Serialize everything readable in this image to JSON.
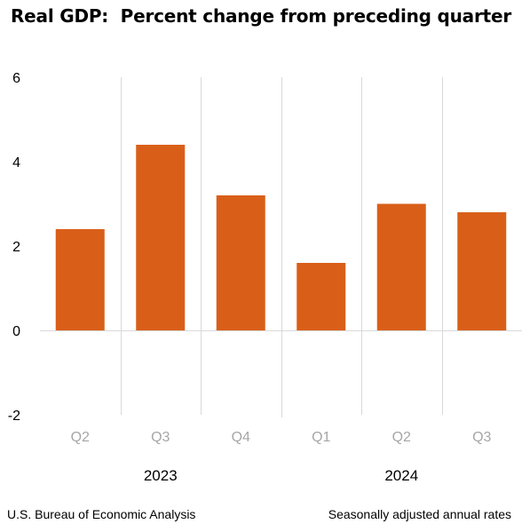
{
  "chart_data": {
    "type": "bar",
    "title": "Real GDP:  Percent change from preceding quarter",
    "categories": [
      "Q2",
      "Q3",
      "Q4",
      "Q1",
      "Q2",
      "Q3"
    ],
    "years": [
      {
        "label": "2023",
        "quarters": [
          "Q2",
          "Q3",
          "Q4"
        ]
      },
      {
        "label": "2024",
        "quarters": [
          "Q1",
          "Q2",
          "Q3"
        ]
      }
    ],
    "values": [
      2.4,
      4.4,
      3.2,
      1.6,
      3.0,
      2.8
    ],
    "yticks": [
      6,
      4,
      2,
      0,
      -2
    ],
    "ylim": [
      -2,
      6
    ],
    "xlabel": "",
    "ylabel": "",
    "grid": false,
    "bar_color": "#D95F19",
    "tick_label_color": "#A6A6A6",
    "separator_color": "#D9D9D9"
  },
  "footer": {
    "source": "U.S. Bureau of Economic Analysis",
    "note": "Seasonally adjusted annual rates"
  }
}
